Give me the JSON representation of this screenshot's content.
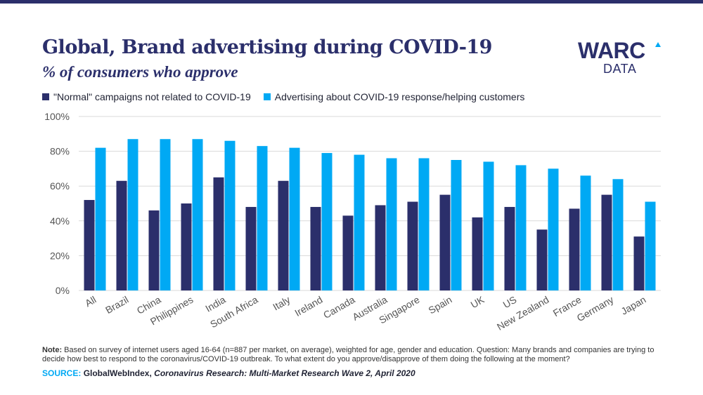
{
  "header": {
    "title": "Global, Brand advertising during COVID-19",
    "subtitle": "% of consumers who approve"
  },
  "logo": {
    "word": "WARC",
    "sub": "DATA"
  },
  "colors": {
    "series_normal": "#2b2f6b",
    "series_covid": "#00a9f4",
    "gridline": "#d9d9d9",
    "brand_bar": "#2b2f6b"
  },
  "footer": {
    "note_label": "Note:",
    "note_text": "Based on survey of internet users aged 16-64 (n=887 per market, on average), weighted for age, gender and education. Question: Many brands and companies are trying to decide how best to respond to the coronavirus/COVID-19 outbreak. To what extent do you approve/disapprove of them doing the following at the moment?",
    "source_label": "SOURCE:",
    "source_org": "GlobalWebIndex,",
    "source_title": "Coronavirus Research: Multi-Market Research Wave 2, April 2020"
  },
  "chart_data": {
    "type": "bar",
    "title": "Global, Brand advertising during COVID-19",
    "subtitle": "% of consumers who approve",
    "xlabel": "",
    "ylabel": "",
    "ylim": [
      0,
      100
    ],
    "yticks": [
      0,
      20,
      40,
      60,
      80,
      100
    ],
    "ytick_labels": [
      "0%",
      "20%",
      "40%",
      "60%",
      "80%",
      "100%"
    ],
    "grid": true,
    "legend_position": "top-left",
    "categories": [
      "All",
      "Brazil",
      "China",
      "Philippines",
      "India",
      "South Africa",
      "Italy",
      "Ireland",
      "Canada",
      "Australia",
      "Singapore",
      "Spain",
      "UK",
      "US",
      "New Zealand",
      "France",
      "Germany",
      "Japan"
    ],
    "series": [
      {
        "name": "\"Normal\" campaigns not related to COVID-19",
        "color": "#2b2f6b",
        "values": [
          52,
          63,
          46,
          50,
          65,
          48,
          63,
          48,
          43,
          49,
          51,
          55,
          42,
          48,
          35,
          47,
          55,
          31
        ]
      },
      {
        "name": "Advertising about COVID-19 response/helping customers",
        "color": "#00a9f4",
        "values": [
          82,
          87,
          87,
          87,
          86,
          83,
          82,
          79,
          78,
          76,
          76,
          75,
          74,
          72,
          70,
          66,
          64,
          51
        ]
      }
    ]
  }
}
